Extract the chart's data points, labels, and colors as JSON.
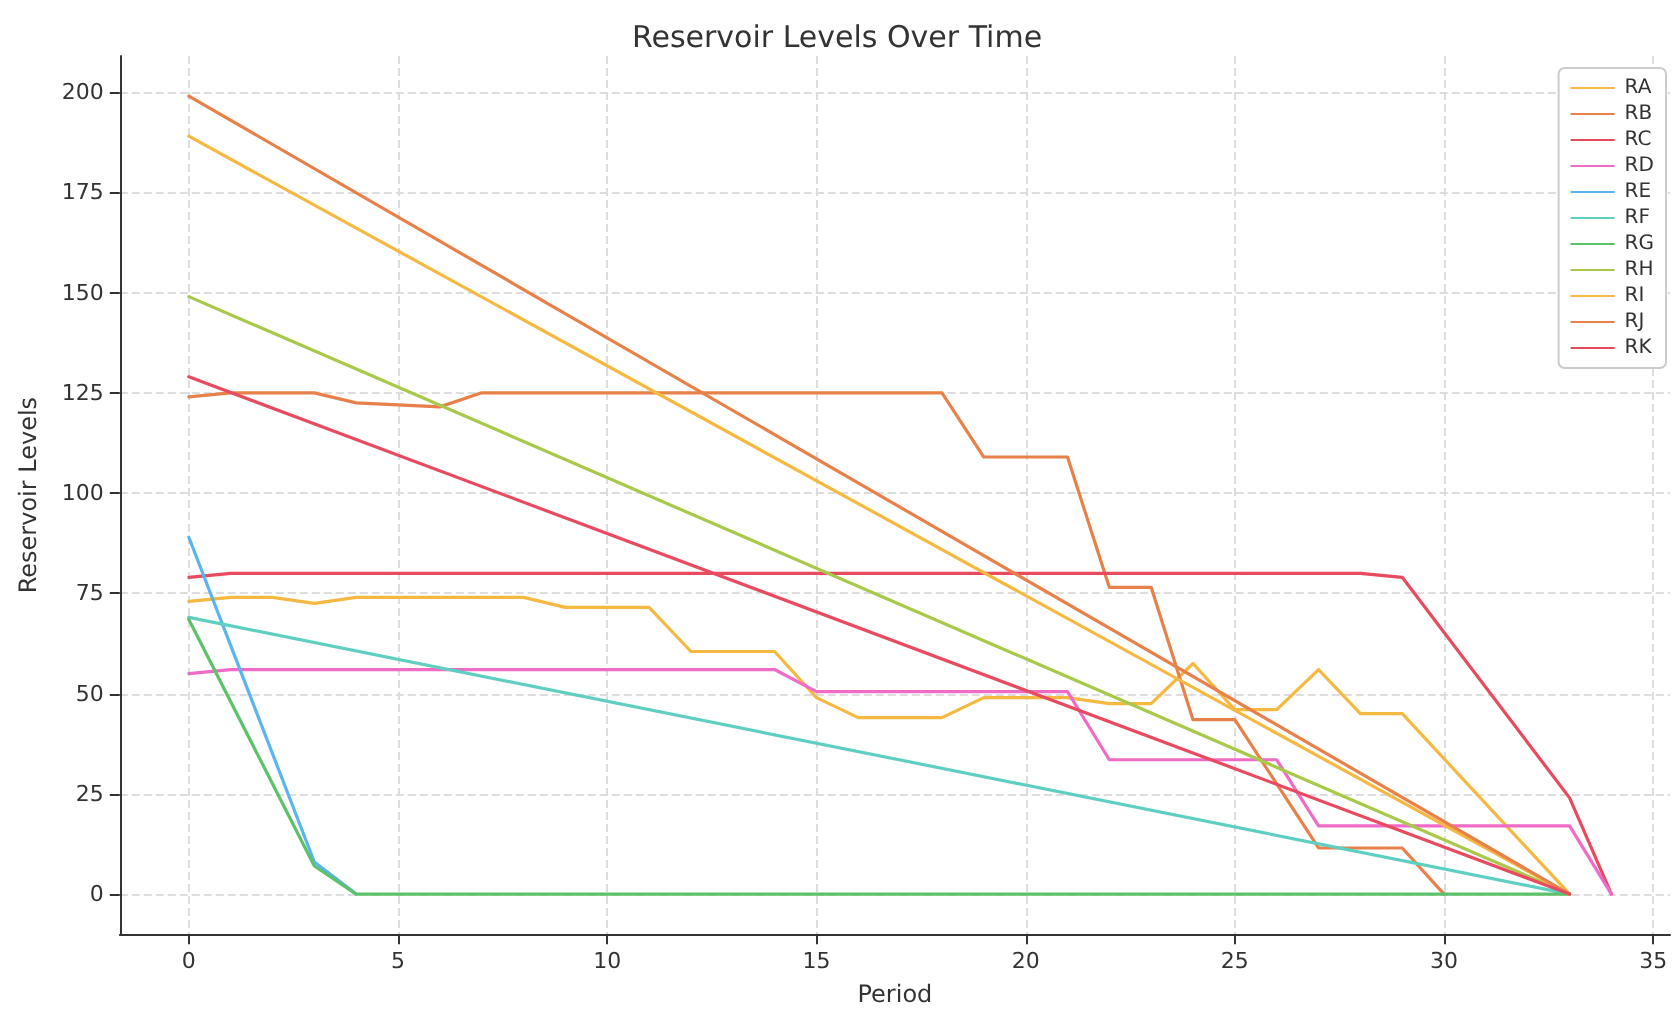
{
  "chart_data": {
    "type": "line",
    "title": "Reservoir Levels Over Time",
    "xlabel": "Period",
    "ylabel": "Reservoir Levels",
    "xlim": [
      -1.65,
      35.4
    ],
    "ylim": [
      -10,
      209
    ],
    "xticks": [
      0,
      5,
      10,
      15,
      20,
      25,
      30,
      35
    ],
    "yticks": [
      0,
      25,
      50,
      75,
      100,
      125,
      150,
      175,
      200
    ],
    "grid": true,
    "legend": "top right",
    "marker": "none",
    "line_style": "solid",
    "series": [
      {
        "name": "RA",
        "color": "#f5b942",
        "x": [
          0,
          1,
          2,
          3,
          4,
          5,
          6,
          7,
          8,
          9,
          10,
          11,
          12,
          13,
          14,
          15,
          16,
          17,
          18,
          19,
          20,
          21,
          22,
          23,
          24,
          25,
          26,
          27,
          28,
          29,
          33
        ],
        "values": [
          73,
          74,
          74,
          72.5,
          74,
          74,
          74,
          74,
          74,
          71.5,
          71.5,
          71.5,
          60.5,
          60.5,
          60.5,
          49,
          44,
          44,
          44,
          49,
          49,
          49,
          47.5,
          47.5,
          57.5,
          46,
          46,
          56,
          45,
          45,
          0
        ]
      },
      {
        "name": "RB",
        "color": "#e8804a",
        "x": [
          0,
          1,
          2,
          3,
          4,
          5,
          6,
          7,
          8,
          18,
          19,
          20,
          21,
          22,
          23,
          24,
          25,
          26,
          27,
          28,
          29,
          30
        ],
        "values": [
          124,
          125,
          125,
          125,
          122.5,
          122,
          121.5,
          125,
          125,
          125,
          109,
          109,
          109,
          76.5,
          76.5,
          43.5,
          43.5,
          27.5,
          11.5,
          11.5,
          11.5,
          0
        ]
      },
      {
        "name": "RC",
        "color": "#e84a5f",
        "x": [
          0,
          1,
          28,
          29,
          33,
          34
        ],
        "values": [
          79,
          80,
          80,
          79,
          24,
          0
        ]
      },
      {
        "name": "RD",
        "color": "#f06bc8",
        "x": [
          0,
          1,
          14,
          15,
          21,
          22,
          26,
          27,
          33,
          34
        ],
        "values": [
          55,
          56,
          56,
          50.5,
          50.5,
          33.5,
          33.5,
          17,
          17,
          0
        ]
      },
      {
        "name": "RE",
        "color": "#5ab4f0",
        "x": [
          0,
          3,
          4
        ],
        "values": [
          89,
          8,
          0
        ]
      },
      {
        "name": "RF",
        "color": "#5ecfc0",
        "x": [
          0,
          33
        ],
        "values": [
          69,
          0
        ]
      },
      {
        "name": "RG",
        "color": "#5cc26a",
        "x": [
          0,
          3,
          4,
          33
        ],
        "values": [
          68.5,
          7,
          0,
          0
        ]
      },
      {
        "name": "RH",
        "color": "#a8c94a",
        "x": [
          0,
          33
        ],
        "values": [
          149,
          0
        ]
      },
      {
        "name": "RI",
        "color": "#f5b942",
        "x": [
          0,
          33
        ],
        "values": [
          189,
          0
        ]
      },
      {
        "name": "RJ",
        "color": "#e8804a",
        "x": [
          0,
          33
        ],
        "values": [
          199,
          0
        ]
      },
      {
        "name": "RK",
        "color": "#e84a5f",
        "x": [
          0,
          33
        ],
        "values": [
          129,
          0
        ]
      }
    ]
  }
}
